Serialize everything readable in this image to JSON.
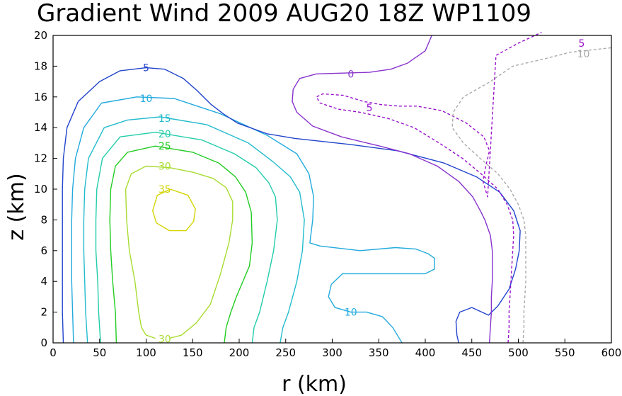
{
  "chart_data": {
    "type": "contour",
    "title": "Gradient Wind 2009 AUG20 18Z  WP1109",
    "xlabel": "r (km)",
    "ylabel": "z (km)",
    "xlim": [
      0,
      600
    ],
    "ylim": [
      0,
      20
    ],
    "xticks": [
      "0",
      "50",
      "100",
      "150",
      "200",
      "250",
      "300",
      "350",
      "400",
      "450",
      "500",
      "550",
      "600"
    ],
    "yticks": [
      "0",
      "2",
      "4",
      "6",
      "8",
      "10",
      "12",
      "14",
      "16",
      "18",
      "20"
    ],
    "grid": false,
    "series": [
      {
        "name": "35",
        "color": "#d4d400",
        "dashed": false,
        "label": {
          "text": "35",
          "x": 120,
          "y": 10.0
        },
        "points": [
          [
            126,
            10
          ],
          [
            145,
            9.6
          ],
          [
            153,
            8.7
          ],
          [
            151,
            7.9
          ],
          [
            143,
            7.3
          ],
          [
            125,
            7.3
          ],
          [
            111,
            7.8
          ],
          [
            107,
            8.6
          ],
          [
            112,
            9.6
          ],
          [
            126,
            10
          ]
        ]
      },
      {
        "name": "30",
        "color": "#a8dc30",
        "dashed": false,
        "label": {
          "text": "30",
          "x": 120,
          "y": 11.5
        },
        "label2": {
          "text": "30",
          "x": 120,
          "y": 0.25
        },
        "points": [
          [
            110,
            0.3
          ],
          [
            100,
            0.5
          ],
          [
            95,
            1
          ],
          [
            92,
            2
          ],
          [
            88,
            4
          ],
          [
            82,
            6
          ],
          [
            79,
            8
          ],
          [
            78,
            10
          ],
          [
            84,
            11
          ],
          [
            100,
            11.5
          ],
          [
            125,
            11.4
          ],
          [
            150,
            11.1
          ],
          [
            172,
            10.7
          ],
          [
            186,
            10.1
          ],
          [
            193,
            9.2
          ],
          [
            193,
            8
          ],
          [
            189,
            6.5
          ],
          [
            180,
            4.5
          ],
          [
            169,
            2.5
          ],
          [
            154,
            1.3
          ],
          [
            138,
            0.5
          ],
          [
            125,
            0.3
          ]
        ]
      },
      {
        "name": "25",
        "color": "#22cc22",
        "dashed": false,
        "label": {
          "text": "25",
          "x": 120,
          "y": 12.8
        },
        "points": [
          [
            68,
            0
          ],
          [
            67,
            2
          ],
          [
            64,
            4
          ],
          [
            62,
            6
          ],
          [
            61,
            8
          ],
          [
            62,
            10
          ],
          [
            67,
            11.5
          ],
          [
            80,
            12.4
          ],
          [
            110,
            12.8
          ],
          [
            150,
            12.4
          ],
          [
            178,
            11.7
          ],
          [
            196,
            10.8
          ],
          [
            207,
            9.8
          ],
          [
            213,
            8.5
          ],
          [
            214,
            6.5
          ],
          [
            211,
            5
          ],
          [
            204,
            4
          ],
          [
            197,
            3
          ],
          [
            191,
            2
          ],
          [
            186,
            1
          ],
          [
            184,
            0
          ]
        ]
      },
      {
        "name": "20",
        "color": "#22ccaa",
        "dashed": false,
        "label": {
          "text": "20",
          "x": 120,
          "y": 13.6
        },
        "points": [
          [
            51,
            0
          ],
          [
            49,
            2
          ],
          [
            48,
            4
          ],
          [
            46,
            6
          ],
          [
            46,
            8
          ],
          [
            47,
            10
          ],
          [
            53,
            12
          ],
          [
            72,
            13.4
          ],
          [
            110,
            13.7
          ],
          [
            160,
            13.2
          ],
          [
            195,
            12.3
          ],
          [
            218,
            11.4
          ],
          [
            232,
            10.4
          ],
          [
            239,
            9.5
          ],
          [
            241,
            8
          ],
          [
            237,
            6
          ],
          [
            230,
            4
          ],
          [
            222,
            2
          ],
          [
            216,
            1
          ],
          [
            214,
            0
          ]
        ]
      },
      {
        "name": "15",
        "color": "#22bbcc",
        "dashed": false,
        "label": {
          "text": "15",
          "x": 120,
          "y": 14.6
        },
        "points": [
          [
            37,
            0
          ],
          [
            35,
            2
          ],
          [
            34,
            4
          ],
          [
            33,
            6
          ],
          [
            33,
            8
          ],
          [
            34,
            10
          ],
          [
            38,
            12
          ],
          [
            55,
            14
          ],
          [
            80,
            14.5
          ],
          [
            115,
            14.7
          ],
          [
            165,
            14.2
          ],
          [
            210,
            13
          ],
          [
            236,
            11.8
          ],
          [
            255,
            10.8
          ],
          [
            265,
            9.8
          ],
          [
            270,
            8
          ],
          [
            268,
            6
          ],
          [
            262,
            4
          ],
          [
            253,
            2
          ],
          [
            247,
            1
          ],
          [
            244,
            0
          ]
        ]
      },
      {
        "name": "10",
        "color": "#22aadd",
        "dashed": false,
        "label": {
          "text": "10",
          "x": 100,
          "y": 15.9
        },
        "label2": {
          "text": "10",
          "x": 320,
          "y": 2.0
        },
        "points": [
          [
            22,
            0
          ],
          [
            21,
            2
          ],
          [
            20,
            4
          ],
          [
            20,
            6
          ],
          [
            20,
            8
          ],
          [
            21,
            10
          ],
          [
            24,
            12
          ],
          [
            33,
            14
          ],
          [
            52,
            15.6
          ],
          [
            90,
            16
          ],
          [
            130,
            15.9
          ],
          [
            180,
            14.9
          ],
          [
            230,
            13.5
          ],
          [
            262,
            12.3
          ],
          [
            275,
            11
          ],
          [
            280,
            9.5
          ],
          [
            279,
            8
          ],
          [
            276,
            6.5
          ],
          [
            287,
            6.3
          ],
          [
            330,
            6
          ],
          [
            368,
            6.2
          ],
          [
            390,
            6.1
          ],
          [
            403,
            5.8
          ],
          [
            410,
            5.5
          ],
          [
            410,
            4.8
          ],
          [
            400,
            4.5
          ],
          [
            374,
            4.5
          ],
          [
            340,
            4.5
          ],
          [
            311,
            4.5
          ],
          [
            299,
            3.8
          ],
          [
            296,
            3
          ],
          [
            303,
            2.3
          ],
          [
            320,
            2.0
          ],
          [
            337,
            2
          ],
          [
            354,
            1.7
          ],
          [
            365,
            1
          ],
          [
            373,
            0.2
          ],
          [
            375,
            0
          ]
        ]
      },
      {
        "name": "5",
        "color": "#2244cc",
        "dashed": false,
        "label": {
          "text": "5",
          "x": 100,
          "y": 17.9
        },
        "points": [
          [
            11,
            0
          ],
          [
            10,
            2
          ],
          [
            10,
            4
          ],
          [
            10,
            6
          ],
          [
            10,
            8
          ],
          [
            10,
            10
          ],
          [
            11,
            12
          ],
          [
            15,
            14
          ],
          [
            27,
            15.7
          ],
          [
            50,
            17
          ],
          [
            72,
            17.7
          ],
          [
            100,
            17.9
          ],
          [
            120,
            17.8
          ],
          [
            140,
            17.2
          ],
          [
            155,
            16.4
          ],
          [
            170,
            15.5
          ],
          [
            183,
            14.9
          ],
          [
            198,
            14.3
          ],
          [
            230,
            13.6
          ],
          [
            260,
            13.3
          ],
          [
            320,
            12.9
          ],
          [
            370,
            12.5
          ],
          [
            420,
            11.7
          ],
          [
            455,
            10.8
          ],
          [
            480,
            9.8
          ],
          [
            495,
            8.6
          ],
          [
            502,
            7.3
          ],
          [
            501,
            6
          ],
          [
            497,
            4.8
          ],
          [
            490,
            3.5
          ],
          [
            478,
            2.4
          ],
          [
            468,
            1.8
          ],
          [
            450,
            2.3
          ],
          [
            437,
            2
          ],
          [
            433,
            1.4
          ],
          [
            434,
            0.5
          ],
          [
            436,
            0
          ]
        ]
      },
      {
        "name": "0",
        "color": "#8833cc",
        "dashed": false,
        "label": {
          "text": "0",
          "x": 320,
          "y": 17.5
        },
        "points": [
          [
            469,
            0
          ],
          [
            470,
            1
          ],
          [
            471,
            2
          ],
          [
            471,
            3
          ],
          [
            472,
            4
          ],
          [
            472,
            5
          ],
          [
            472,
            6
          ],
          [
            470,
            7
          ],
          [
            464,
            8
          ],
          [
            460,
            8.5
          ],
          [
            451,
            9.5
          ],
          [
            436,
            10.5
          ],
          [
            413,
            11.5
          ],
          [
            383,
            12.3
          ],
          [
            351,
            12.8
          ],
          [
            310,
            13.4
          ],
          [
            279,
            14.1
          ],
          [
            262,
            15
          ],
          [
            257,
            15.7
          ],
          [
            258,
            16.5
          ],
          [
            265,
            17.2
          ],
          [
            283,
            17.5
          ],
          [
            340,
            17.6
          ],
          [
            363,
            17.8
          ],
          [
            381,
            18.2
          ],
          [
            400,
            19
          ],
          [
            407,
            20
          ]
        ]
      },
      {
        "name": "-5",
        "color": "#9911cc",
        "dashed": true,
        "label": {
          "text": "5",
          "x": 340,
          "y": 15.3
        },
        "label2": {
          "text": "5",
          "x": 568,
          "y": 19.5
        },
        "points": [
          [
            489,
            0
          ],
          [
            490,
            1
          ],
          [
            490,
            2
          ],
          [
            491,
            3
          ],
          [
            492,
            4
          ],
          [
            493,
            5
          ],
          [
            494,
            6
          ],
          [
            495,
            7
          ],
          [
            494,
            8
          ],
          [
            488,
            9
          ],
          [
            478,
            10
          ],
          [
            460,
            11
          ],
          [
            440,
            12
          ],
          [
            415,
            13
          ],
          [
            388,
            14
          ],
          [
            360,
            14.6
          ],
          [
            330,
            15
          ],
          [
            307,
            15.2
          ],
          [
            287,
            15.6
          ],
          [
            283,
            16
          ],
          [
            290,
            16.2
          ],
          [
            312,
            16.1
          ],
          [
            334,
            15.7
          ],
          [
            352,
            15.5
          ],
          [
            372,
            15.4
          ],
          [
            391,
            15.4
          ],
          [
            418,
            15.1
          ],
          [
            444,
            14.3
          ],
          [
            463,
            13.4
          ],
          [
            469,
            12.5
          ],
          [
            465,
            11.5
          ],
          [
            462,
            10.5
          ],
          [
            467,
            9.5
          ],
          [
            476,
            18.7
          ],
          [
            500,
            19.5
          ],
          [
            525,
            20.2
          ]
        ]
      },
      {
        "name": "-10",
        "color": "#aaaaaa",
        "dashed": true,
        "label": {
          "text": "10",
          "x": 570,
          "y": 18.8
        },
        "points": [
          [
            505,
            0
          ],
          [
            506,
            1
          ],
          [
            506,
            2
          ],
          [
            507,
            3
          ],
          [
            508,
            4
          ],
          [
            508,
            5
          ],
          [
            508,
            6
          ],
          [
            508,
            7
          ],
          [
            506,
            8
          ],
          [
            500,
            9
          ],
          [
            491,
            10
          ],
          [
            478,
            11
          ],
          [
            459,
            12
          ],
          [
            441,
            13
          ],
          [
            429,
            14
          ],
          [
            430,
            15
          ],
          [
            441,
            16
          ],
          [
            470,
            17
          ],
          [
            494,
            18
          ],
          [
            530,
            18.5
          ],
          [
            555,
            18.9
          ],
          [
            600,
            19.2
          ]
        ]
      }
    ]
  }
}
